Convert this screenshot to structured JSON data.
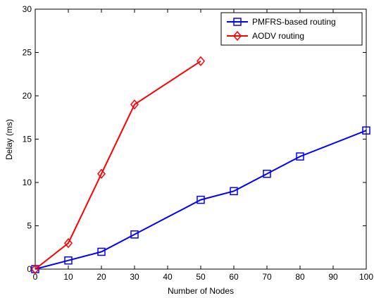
{
  "chart_data": {
    "type": "line",
    "xlabel": "Number of Nodes",
    "ylabel": "Delay (ms)",
    "xlim": [
      0,
      100
    ],
    "ylim": [
      0,
      30
    ],
    "xticks": [
      0,
      10,
      20,
      30,
      40,
      50,
      60,
      70,
      80,
      90,
      100
    ],
    "yticks": [
      0,
      5,
      10,
      15,
      20,
      25,
      30
    ],
    "grid": false,
    "legend_position": "top-right",
    "series": [
      {
        "name": "PMFRS-based routing",
        "color": "#0000ff",
        "marker": "square",
        "x": [
          0,
          10,
          20,
          30,
          50,
          60,
          70,
          80,
          100
        ],
        "y": [
          0,
          1,
          2,
          4,
          8,
          9,
          11,
          13,
          16
        ]
      },
      {
        "name": "AODV routing",
        "color": "#ff0000",
        "marker": "diamond",
        "x": [
          0,
          10,
          20,
          30,
          50
        ],
        "y": [
          0,
          3,
          11,
          19,
          24
        ]
      }
    ]
  }
}
